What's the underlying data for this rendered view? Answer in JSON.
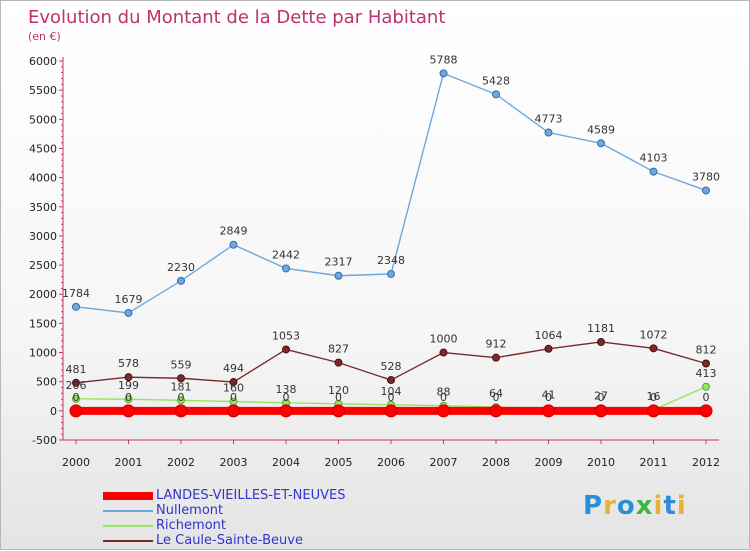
{
  "chart_data": {
    "type": "line",
    "title": "Evolution du Montant de la Dette par Habitant",
    "subtitle": "(en €)",
    "x": [
      "2000",
      "2001",
      "2002",
      "2003",
      "2004",
      "2005",
      "2006",
      "2007",
      "2008",
      "2009",
      "2010",
      "2011",
      "2012"
    ],
    "ylim": [
      -500,
      6000
    ],
    "yticks": [
      -500,
      0,
      500,
      1000,
      1500,
      2000,
      2500,
      3000,
      3500,
      4000,
      4500,
      5000,
      5500,
      6000
    ],
    "grid": false,
    "legend_position": "bottom-left",
    "series": [
      {
        "name": "LANDES-VIEILLES-ET-NEUVES",
        "color": "#ff0000",
        "values": [
          0,
          0,
          0,
          0,
          0,
          0,
          0,
          0,
          0,
          0,
          0,
          0,
          0
        ]
      },
      {
        "name": "Nullemont",
        "color": "#6fa8dc",
        "values": [
          1784,
          1679,
          2230,
          2849,
          2442,
          2317,
          2348,
          5788,
          5428,
          4773,
          4589,
          4103,
          3780
        ]
      },
      {
        "name": "Richemont",
        "color": "#99e55c",
        "values": [
          206,
          199,
          181,
          160,
          138,
          120,
          104,
          88,
          64,
          41,
          27,
          16,
          413
        ]
      },
      {
        "name": "Le Caule-Sainte-Beuve",
        "color": "#7a2a2a",
        "values": [
          481,
          578,
          559,
          494,
          1053,
          827,
          528,
          1000,
          912,
          1064,
          1181,
          1072,
          812
        ]
      }
    ]
  },
  "logo": {
    "text": "Proxiti",
    "letters": [
      "P",
      "r",
      "o",
      "x",
      "i",
      "t",
      "i"
    ],
    "colors": [
      "#2a8fd6",
      "#e8b23a",
      "#2a8fd6",
      "#3cb84a",
      "#e8b23a",
      "#2a8fd6",
      "#e8b23a"
    ]
  }
}
